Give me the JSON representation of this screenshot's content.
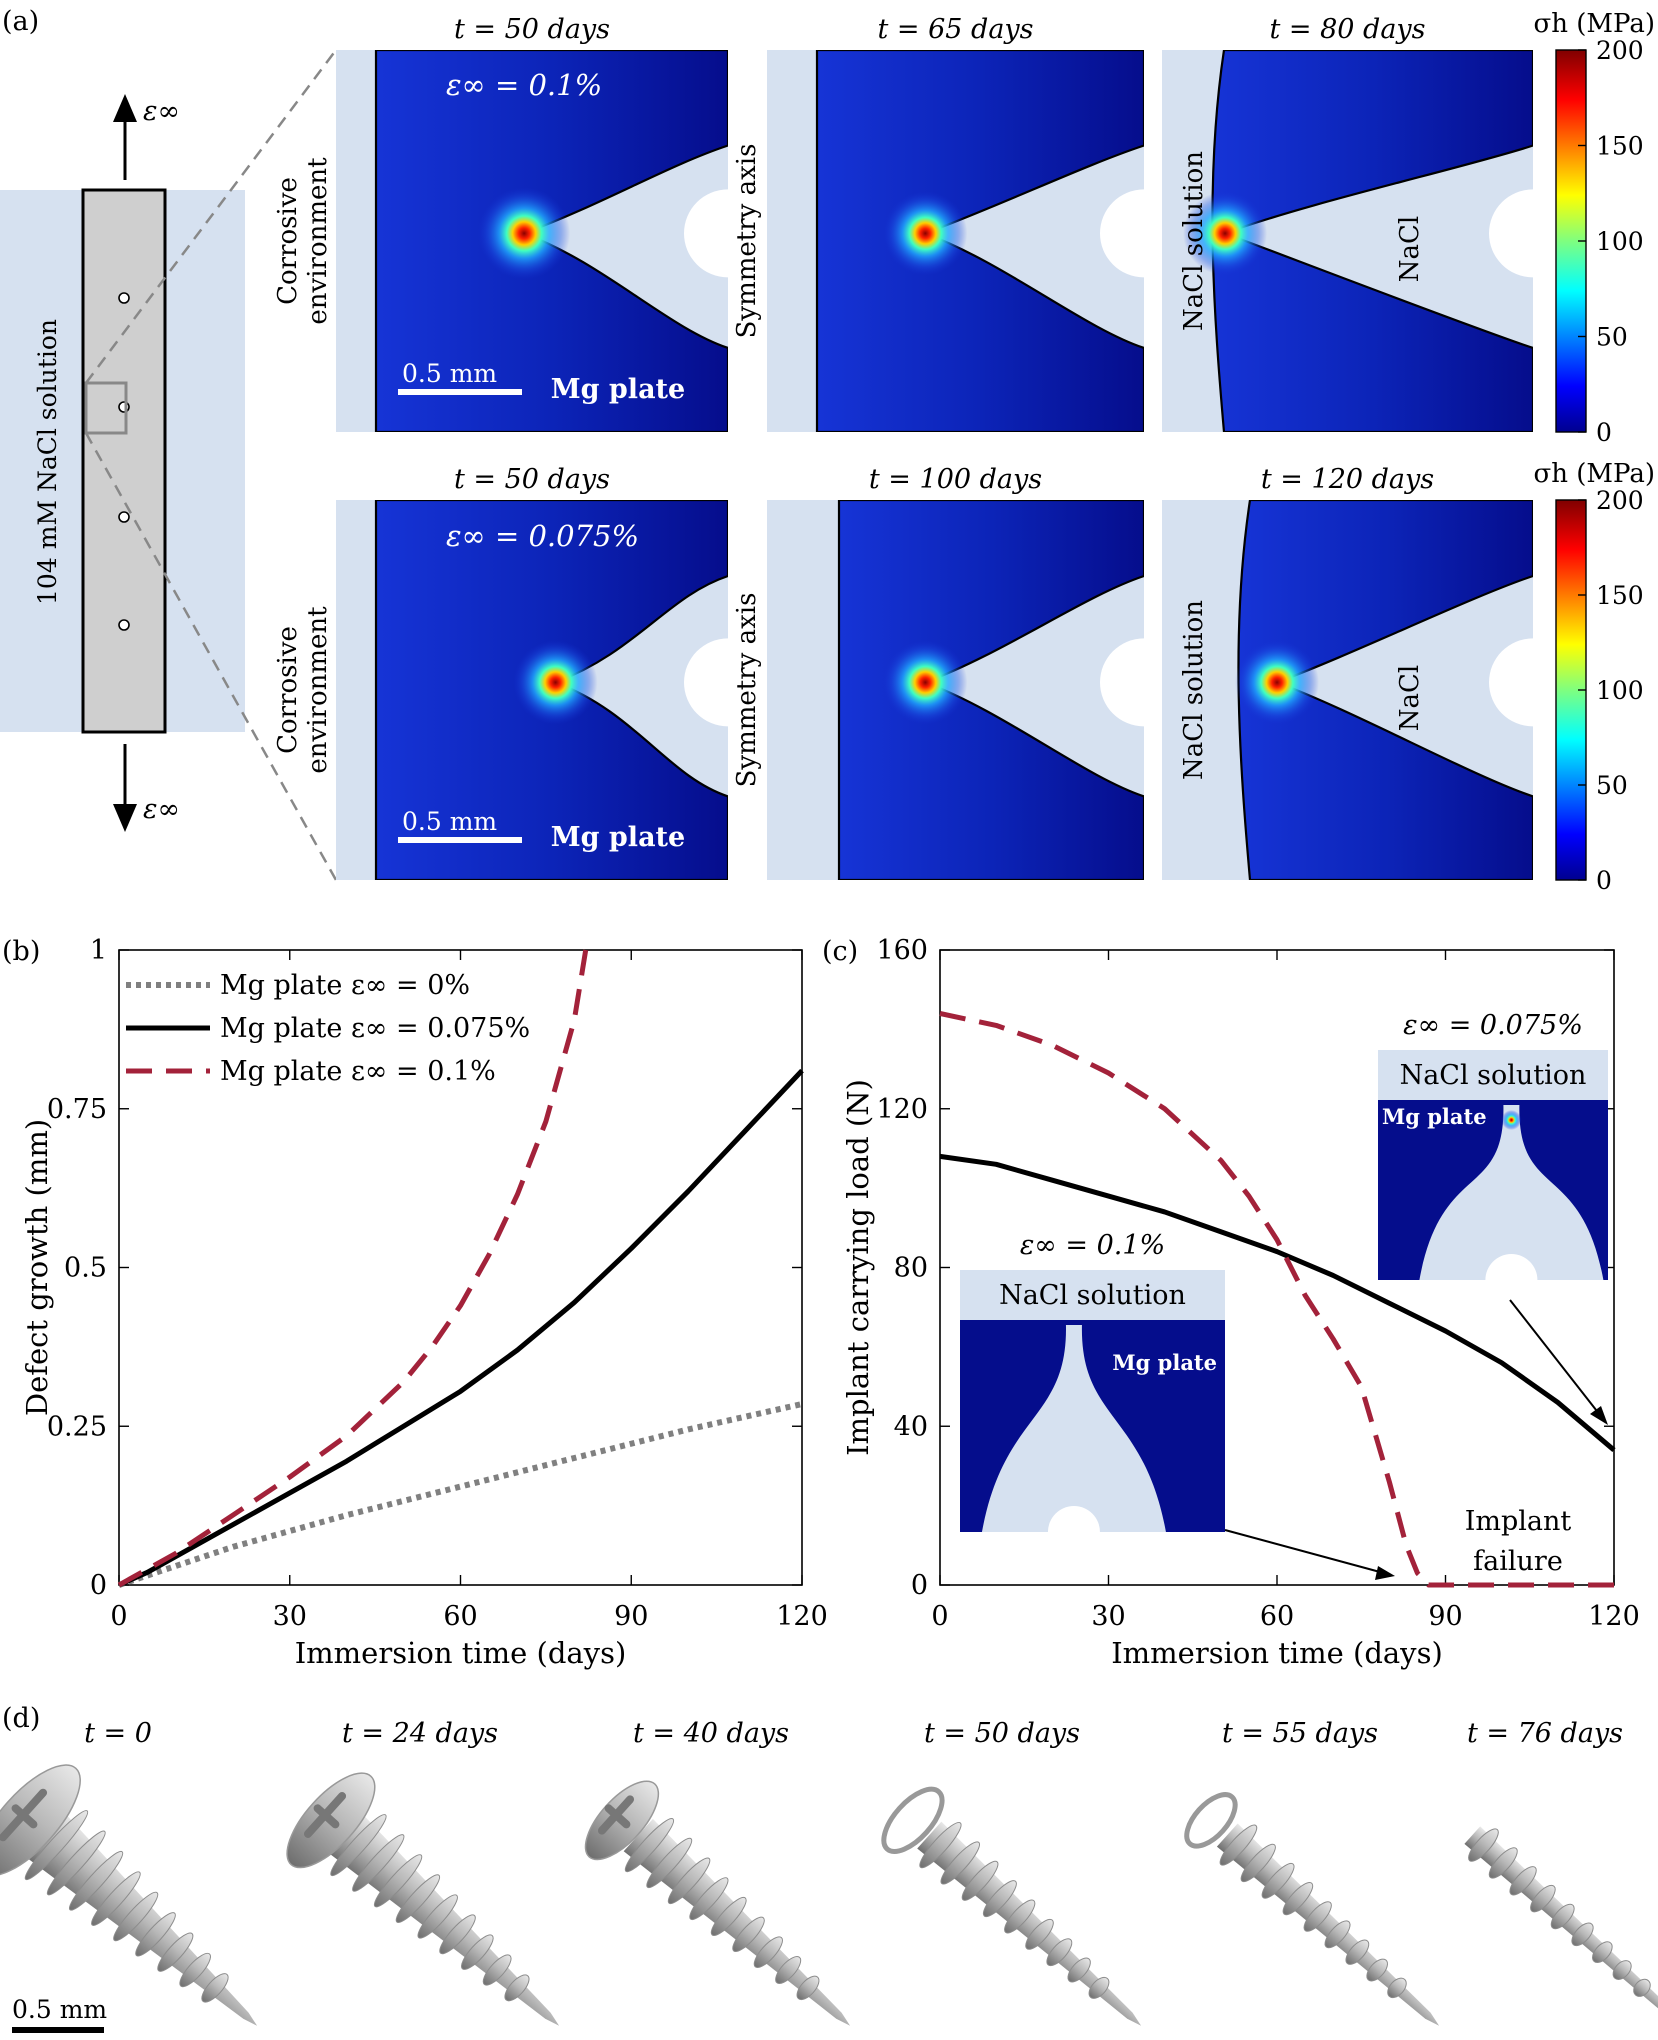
{
  "panel_labels": {
    "a": "(a)",
    "b": "(b)",
    "c": "(c)",
    "d": "(d)"
  },
  "colors": {
    "chart_red": "#a3223a",
    "chart_black": "#000000",
    "chart_gray": "#808080",
    "solution": "#d6e1f0",
    "field_low": "#0a0f96",
    "field_mid": "#2a6ad2"
  },
  "schematic": {
    "solution_label": "104 mM NaCl solution",
    "strain_label": "ε∞"
  },
  "contour_panels": {
    "rows": [
      {
        "strain_label": "ε∞ = 0.1%",
        "times": [
          "t = 50 days",
          "t = 65 days",
          "t = 80 days"
        ],
        "tip_positions_fraction": [
          0.48,
          0.42,
          0.17
        ]
      },
      {
        "strain_label": "ε∞ = 0.075%",
        "times": [
          "t = 50 days",
          "t = 100 days",
          "t = 120 days"
        ],
        "tip_positions_fraction": [
          0.56,
          0.42,
          0.31
        ]
      }
    ],
    "labels": {
      "corrosive": [
        "Corrosive",
        "environment"
      ],
      "symmetry": "Symmetry axis",
      "nacl_solution": "NaCl solution",
      "nacl": "NaCl",
      "mg_plate": "Mg plate",
      "scale": "0.5 mm"
    },
    "colorbar": {
      "title": "σh (MPa)",
      "ticks": [
        "200",
        "150",
        "100",
        "50",
        "0"
      ],
      "min": 0,
      "max": 200
    }
  },
  "chart_data": [
    {
      "type": "line",
      "panel": "(b)",
      "title": "",
      "xlabel": "Immersion time (days)",
      "ylabel": "Defect growth (mm)",
      "xlim": [
        0,
        120
      ],
      "ylim": [
        0,
        1
      ],
      "xticks": [
        "0",
        "30",
        "60",
        "90",
        "120"
      ],
      "yticks": [
        "0",
        "0.25",
        "0.5",
        "0.75",
        "1"
      ],
      "legend_position": "top-left",
      "series": [
        {
          "name": "Mg plate ε∞ = 0%",
          "style": "dotted",
          "color": "#808080",
          "x": [
            0,
            20,
            40,
            60,
            80,
            100,
            120
          ],
          "y": [
            0,
            0.06,
            0.11,
            0.155,
            0.2,
            0.245,
            0.285
          ]
        },
        {
          "name": "Mg plate ε∞ = 0.075%",
          "style": "solid",
          "color": "#000000",
          "x": [
            0,
            5,
            10,
            20,
            30,
            40,
            50,
            60,
            70,
            80,
            90,
            100,
            110,
            120
          ],
          "y": [
            0,
            0.02,
            0.045,
            0.095,
            0.145,
            0.195,
            0.25,
            0.305,
            0.37,
            0.445,
            0.53,
            0.62,
            0.715,
            0.81
          ]
        },
        {
          "name": "Mg plate ε∞ = 0.1%",
          "style": "dashed",
          "color": "#a3223a",
          "x": [
            0,
            10,
            20,
            30,
            40,
            50,
            55,
            60,
            65,
            70,
            75,
            80,
            82
          ],
          "y": [
            0,
            0.05,
            0.11,
            0.17,
            0.235,
            0.32,
            0.375,
            0.44,
            0.52,
            0.615,
            0.73,
            0.89,
            1.0
          ]
        }
      ]
    },
    {
      "type": "line",
      "panel": "(c)",
      "title": "",
      "xlabel": "Immersion time (days)",
      "ylabel": "Implant carrying load (N)",
      "xlim": [
        0,
        120
      ],
      "ylim": [
        0,
        160
      ],
      "xticks": [
        "0",
        "30",
        "60",
        "90",
        "120"
      ],
      "yticks": [
        "0",
        "40",
        "80",
        "120",
        "160"
      ],
      "series": [
        {
          "name": "ε∞ = 0.075%",
          "style": "solid",
          "color": "#000000",
          "x": [
            0,
            10,
            20,
            30,
            40,
            50,
            60,
            70,
            80,
            90,
            100,
            110,
            120
          ],
          "y": [
            108,
            106,
            102,
            98,
            94,
            89,
            84,
            78,
            71,
            64,
            56,
            46,
            34
          ]
        },
        {
          "name": "ε∞ = 0.1%",
          "style": "dashed",
          "color": "#a3223a",
          "x": [
            0,
            10,
            20,
            30,
            40,
            50,
            55,
            60,
            65,
            70,
            75,
            80,
            83,
            85,
            87,
            120
          ],
          "y": [
            144,
            141,
            136,
            129,
            120,
            107,
            98,
            87,
            73,
            62,
            50,
            26,
            10,
            3,
            0,
            0
          ]
        }
      ],
      "annotations": [
        {
          "text": "Implant",
          "text2": "failure"
        }
      ],
      "insets": [
        {
          "strain": "ε∞ = 0.075%",
          "solution": "NaCl solution",
          "plate": "Mg plate"
        },
        {
          "strain": "ε∞ = 0.1%",
          "solution": "NaCl solution",
          "plate": "Mg plate"
        }
      ]
    }
  ],
  "screws": {
    "times": [
      "t = 0",
      "t = 24 days",
      "t = 40 days",
      "t = 50 days",
      "t = 55 days",
      "t = 76 days"
    ],
    "remaining_fraction": [
      1.0,
      0.85,
      0.7,
      0.55,
      0.45,
      0.3
    ],
    "scale": "0.5 mm"
  }
}
